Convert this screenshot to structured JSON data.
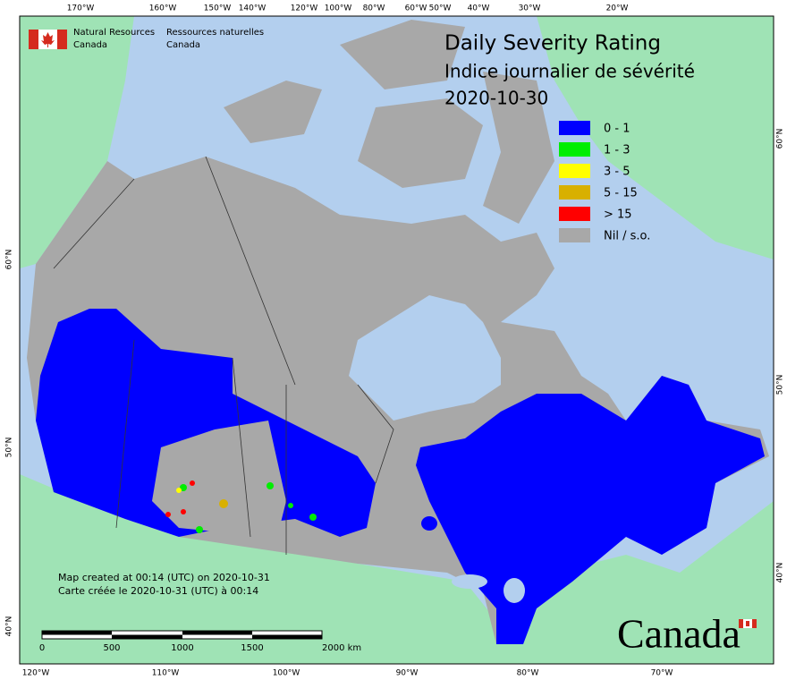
{
  "header": {
    "agency_en": [
      "Natural Resources",
      "Canada"
    ],
    "agency_fr": [
      "Ressources naturelles",
      "Canada"
    ]
  },
  "title": [
    "Daily Severity Rating",
    "Indice journalier de sévérité",
    "2020-10-30"
  ],
  "legend": [
    {
      "label": "0 - 1",
      "color": "#0000ff"
    },
    {
      "label": "1 - 3",
      "color": "#00ee00"
    },
    {
      "label": "3 - 5",
      "color": "#ffff00"
    },
    {
      "label": "5 - 15",
      "color": "#d8b000"
    },
    {
      "label": "> 15",
      "color": "#ff0000"
    },
    {
      "label": "Nil / s.o.",
      "color": "#a8a8a8"
    }
  ],
  "graticule": {
    "top": [
      "170°W",
      "160°W",
      "150°W",
      "140°W",
      "120°W",
      "100°W",
      "80°W",
      "60°W",
      "50°W",
      "40°W",
      "30°W",
      "20°W"
    ],
    "bottom": [
      "120°W",
      "110°W",
      "100°W",
      "90°W",
      "80°W",
      "70°W"
    ],
    "left": [
      "60°N",
      "50°N",
      "40°N"
    ],
    "right": [
      "60°N",
      "50°N",
      "40°N"
    ]
  },
  "notes": [
    "Map created at 00:14 (UTC) on 2020-10-31",
    "Carte créée le 2020-10-31 (UTC) à 00:14"
  ],
  "scale_bar": [
    "0",
    "500",
    "1000",
    "1500",
    "2000 km"
  ],
  "wordmark": "Canada"
}
